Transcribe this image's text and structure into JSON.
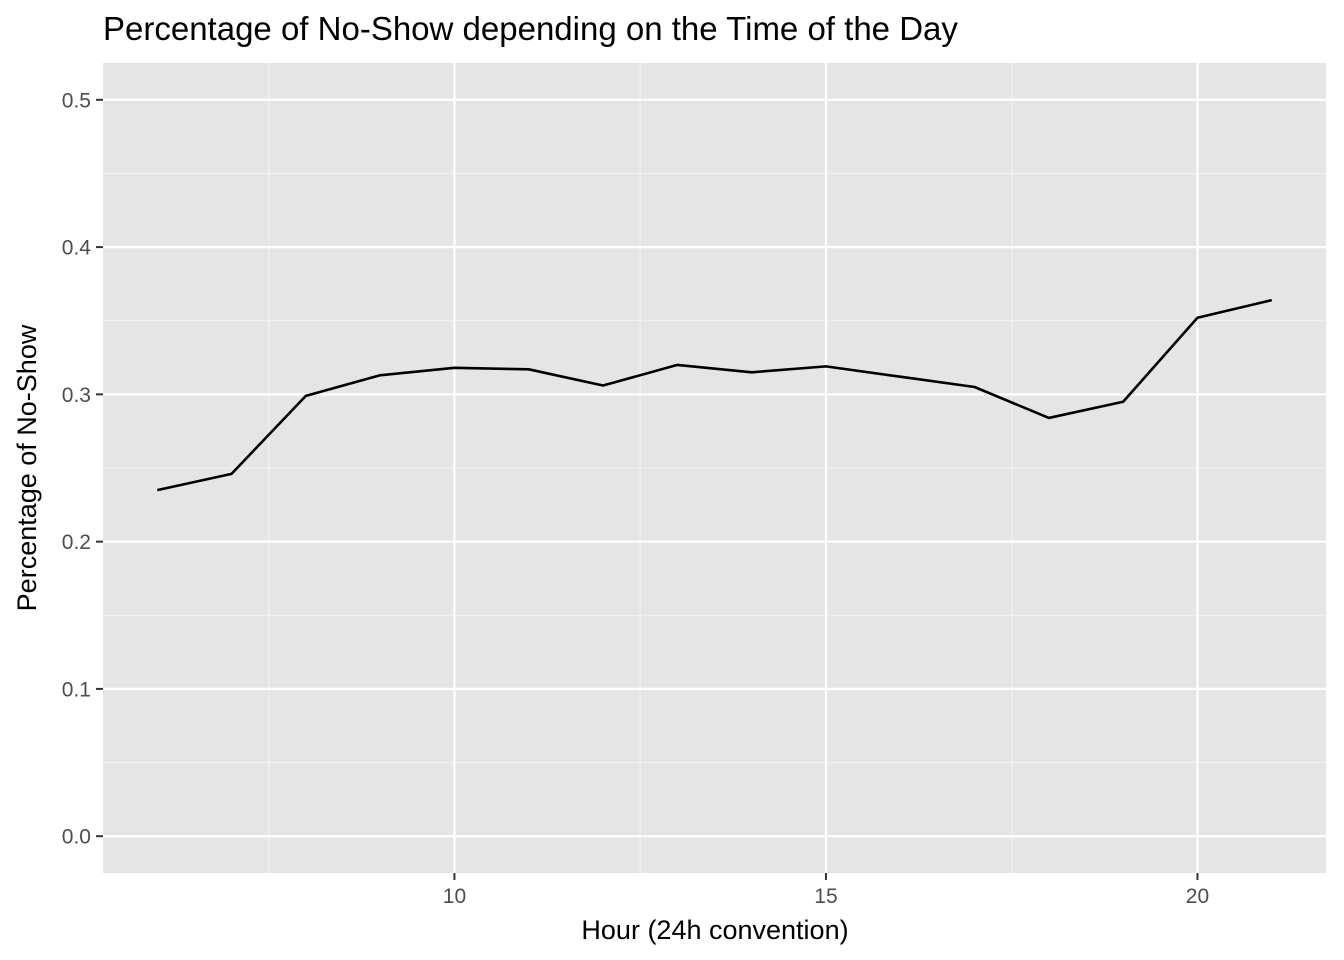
{
  "chart_data": {
    "type": "line",
    "title": "Percentage of No-Show depending on the Time of the Day",
    "xlabel": "Hour (24h convention)",
    "ylabel": "Percentage of No-Show",
    "xlim": [
      5.27,
      21.73
    ],
    "ylim": [
      -0.025,
      0.525
    ],
    "x_ticks": [
      10,
      15,
      20
    ],
    "x_tick_labels": [
      "10",
      "15",
      "20"
    ],
    "x_minor_ticks": [
      7.5,
      12.5,
      17.5
    ],
    "y_ticks": [
      0.0,
      0.1,
      0.2,
      0.3,
      0.4,
      0.5
    ],
    "y_tick_labels": [
      "0.0",
      "0.1",
      "0.2",
      "0.3",
      "0.4",
      "0.5"
    ],
    "y_minor_ticks": [
      0.05,
      0.15,
      0.25,
      0.35,
      0.45
    ],
    "grid": true,
    "legend": "none",
    "colors": {
      "panel_background": "#e5e5e5",
      "grid_major": "#ffffff",
      "grid_minor": "#f2f2f2",
      "line": "#000000",
      "tick_mark": "#333333"
    },
    "series": [
      {
        "x": [
          6,
          7,
          8,
          9,
          10,
          11,
          12,
          13,
          14,
          15,
          16,
          17,
          18,
          19,
          20,
          21
        ],
        "y": [
          0.235,
          0.246,
          0.299,
          0.313,
          0.318,
          0.317,
          0.306,
          0.32,
          0.315,
          0.319,
          0.312,
          0.305,
          0.284,
          0.295,
          0.352,
          0.364
        ]
      }
    ]
  }
}
